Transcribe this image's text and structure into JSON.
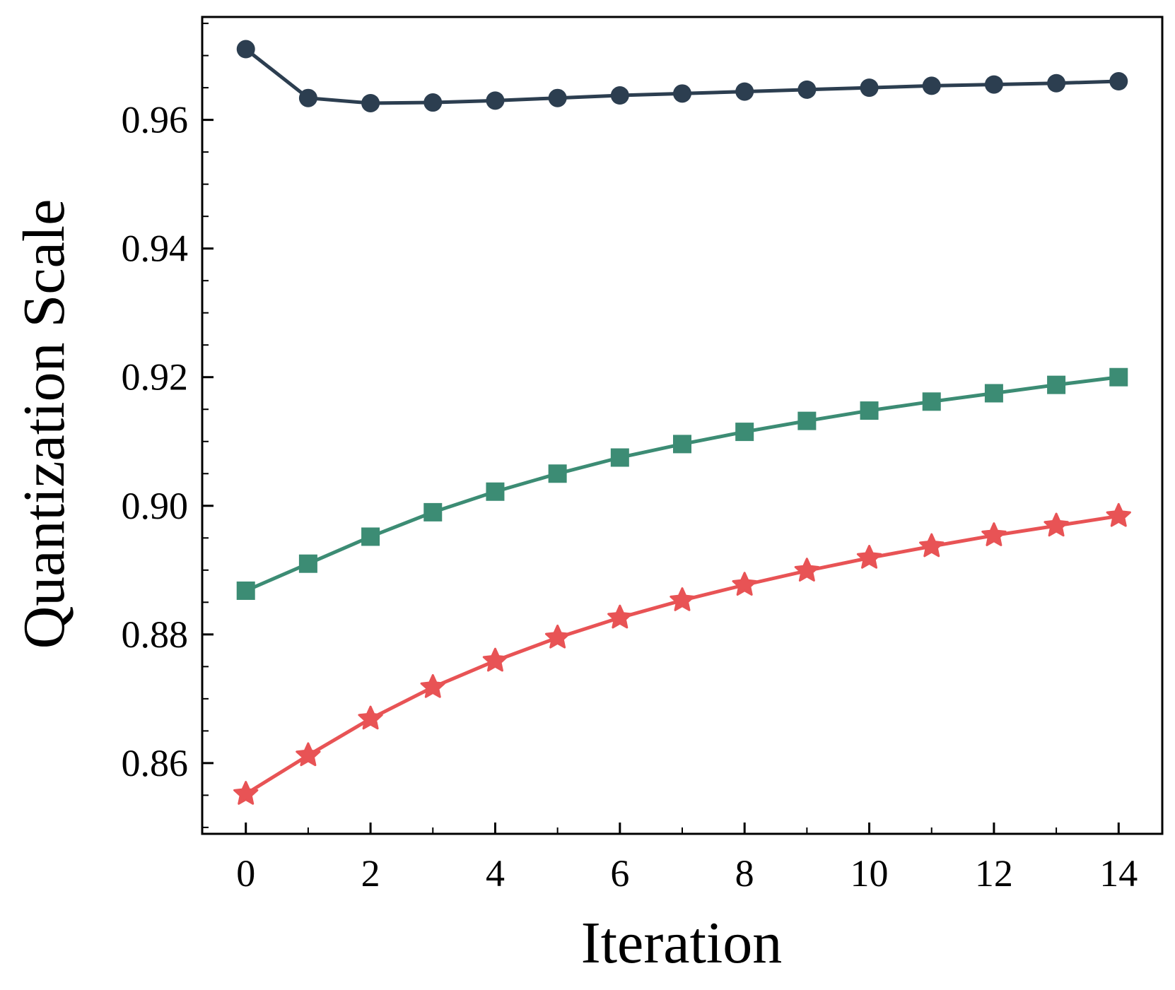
{
  "chart_data": {
    "type": "line",
    "title": "",
    "xlabel": "Iteration",
    "ylabel": "Quantization Scale",
    "xlim": [
      -0.7,
      14.7
    ],
    "ylim": [
      0.849,
      0.976
    ],
    "xticks": [
      0,
      2,
      4,
      6,
      8,
      10,
      12,
      14
    ],
    "xtick_labels": [
      "0",
      "2",
      "4",
      "6",
      "8",
      "10",
      "12",
      "14"
    ],
    "yticks": [
      0.86,
      0.88,
      0.9,
      0.92,
      0.94,
      0.96
    ],
    "ytick_labels": [
      "0.86",
      "0.88",
      "0.90",
      "0.92",
      "0.94",
      "0.96"
    ],
    "x": [
      0,
      1,
      2,
      3,
      4,
      5,
      6,
      7,
      8,
      9,
      10,
      11,
      12,
      13,
      14
    ],
    "grid": false,
    "legend": null,
    "series": [
      {
        "name": "circle-series",
        "color": "#2c3e50",
        "marker": "circle",
        "values": [
          0.971,
          0.9634,
          0.9626,
          0.9627,
          0.963,
          0.9634,
          0.9638,
          0.9641,
          0.9644,
          0.9647,
          0.965,
          0.9653,
          0.9655,
          0.9657,
          0.966
        ]
      },
      {
        "name": "square-series",
        "color": "#3c8c74",
        "marker": "square",
        "values": [
          0.8868,
          0.891,
          0.8952,
          0.899,
          0.9022,
          0.905,
          0.9075,
          0.9096,
          0.9115,
          0.9132,
          0.9148,
          0.9162,
          0.9175,
          0.9188,
          0.92
        ]
      },
      {
        "name": "star-series",
        "color": "#e85355",
        "marker": "star",
        "values": [
          0.8552,
          0.8612,
          0.8669,
          0.8718,
          0.8759,
          0.8795,
          0.8826,
          0.8853,
          0.8877,
          0.8899,
          0.8919,
          0.8937,
          0.8954,
          0.8969,
          0.8984
        ]
      }
    ]
  }
}
